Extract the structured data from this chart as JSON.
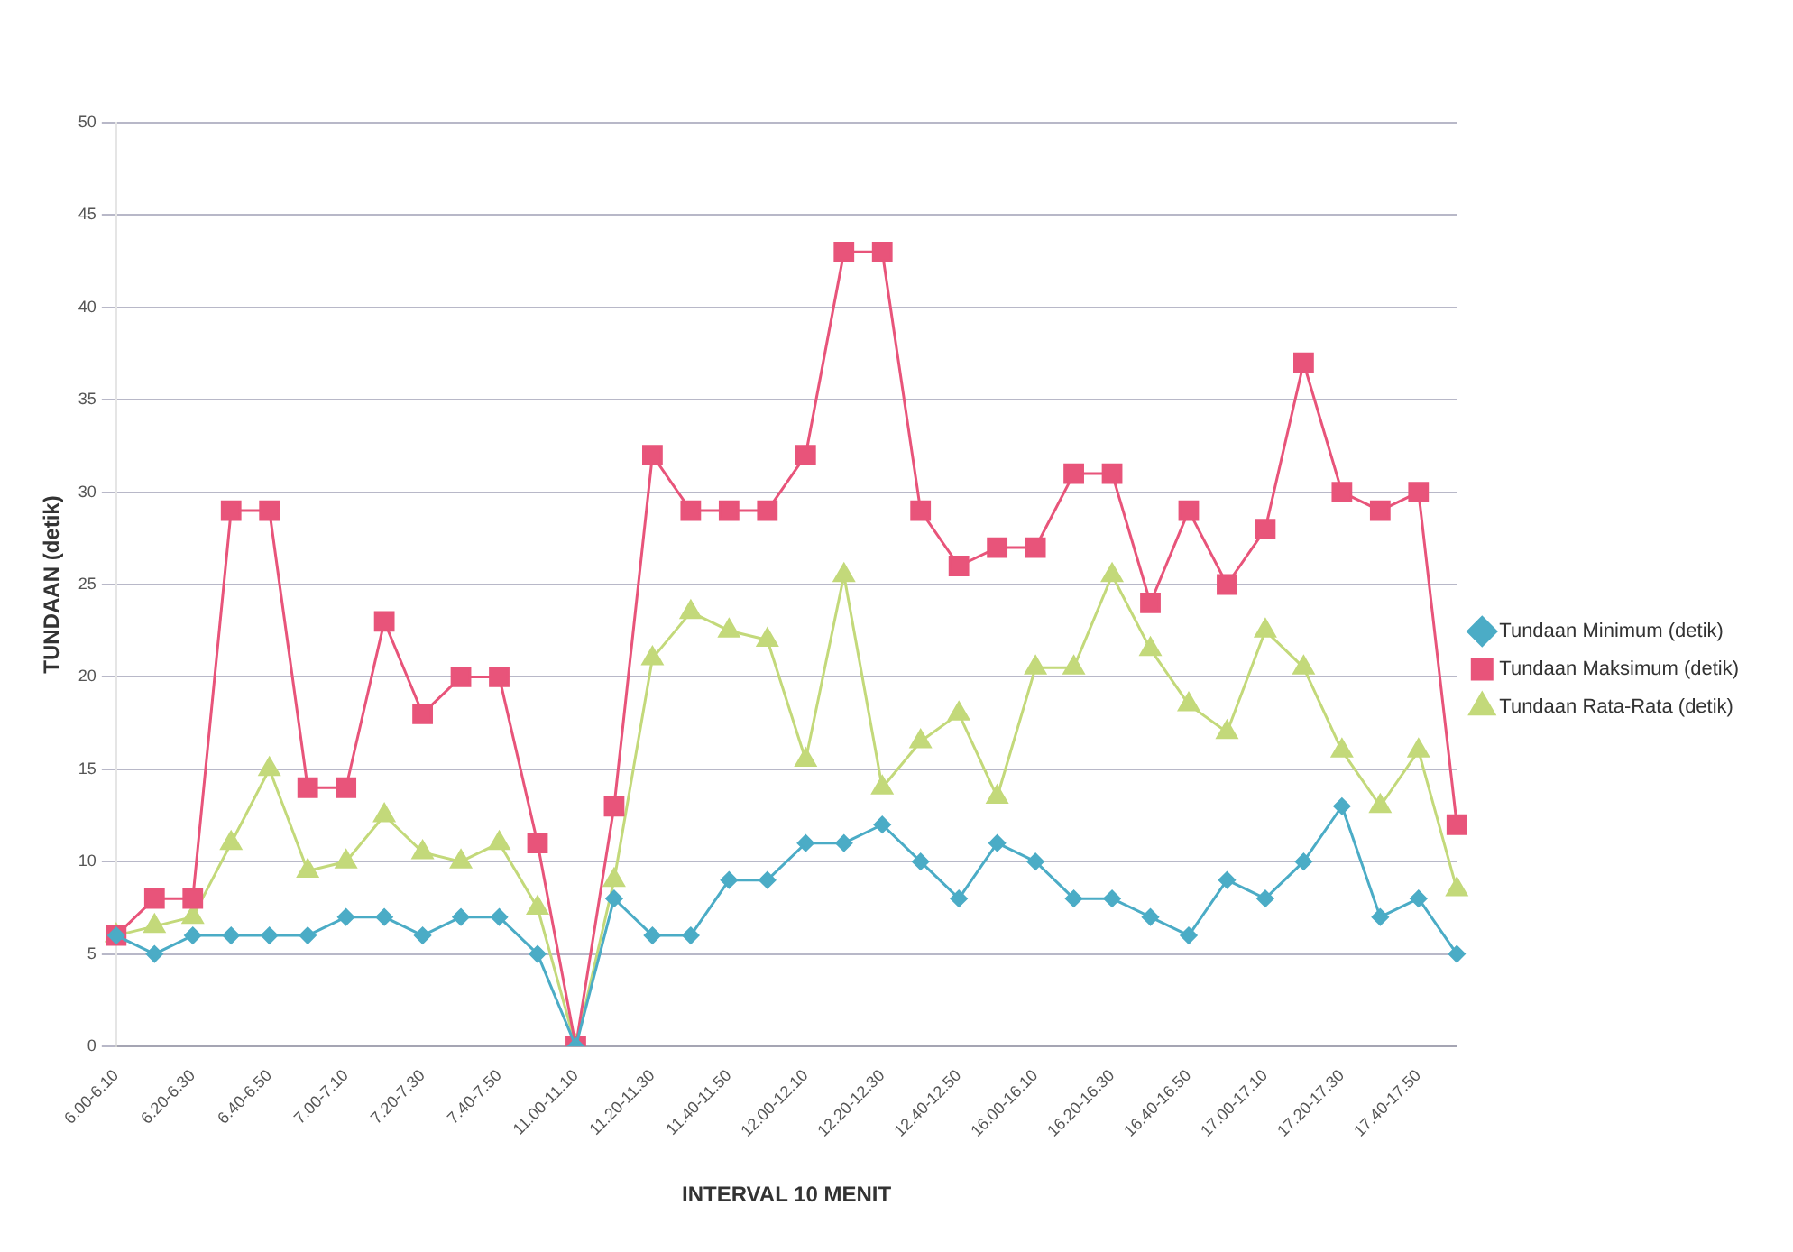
{
  "chart_data": {
    "type": "line",
    "xlabel": "INTERVAL 10 MENIT",
    "ylabel": "TUNDAAN (detik)",
    "categories": [
      "6.00-6.10",
      null,
      "6.20-6.30",
      null,
      "6.40-6.50",
      null,
      "7.00-7.10",
      null,
      "7.20-7.30",
      null,
      "7.40-7.50",
      null,
      "11.00-11.10",
      null,
      "11.20-11.30",
      null,
      "11.40-11.50",
      null,
      "12.00-12.10",
      null,
      "12.20-12.30",
      null,
      "12.40-12.50",
      null,
      "16.00-16.10",
      null,
      "16.20-16.30",
      null,
      "16.40-16.50",
      null,
      "17.00-17.10",
      null,
      "17.20-17.30",
      null,
      "17.40-17.50",
      null
    ],
    "series": [
      {
        "name": "Tundaan Minimum (detik)",
        "color": "#4bacc6",
        "marker": "diamond",
        "values": [
          6,
          5,
          6,
          6,
          6,
          6,
          7,
          7,
          6,
          7,
          7,
          5,
          0,
          8,
          6,
          6,
          9,
          9,
          11,
          11,
          12,
          10,
          8,
          11,
          10,
          8,
          8,
          7,
          6,
          9,
          8,
          10,
          13,
          7,
          8,
          5
        ]
      },
      {
        "name": "Tundaan Maksimum (detik)",
        "color": "#e8547a",
        "marker": "square",
        "values": [
          6,
          8,
          8,
          29,
          29,
          14,
          14,
          23,
          18,
          20,
          20,
          11,
          0,
          13,
          32,
          29,
          29,
          29,
          32,
          43,
          43,
          29,
          26,
          27,
          27,
          31,
          31,
          24,
          29,
          25,
          28,
          37,
          30,
          29,
          30,
          12
        ]
      },
      {
        "name": "Tundaan Rata-Rata (detik)",
        "color": "#c3d97a",
        "marker": "triangle",
        "values": [
          6,
          6.5,
          7,
          11,
          15,
          9.5,
          10,
          12.5,
          10.5,
          10,
          11,
          7.5,
          0,
          9,
          21,
          23.5,
          22.5,
          22,
          15.5,
          25.5,
          14,
          16.5,
          18,
          13.5,
          20.5,
          20.5,
          25.5,
          21.5,
          18.5,
          17,
          22.5,
          20.5,
          16,
          13,
          16,
          8.5
        ]
      }
    ],
    "ylim": [
      0,
      50
    ],
    "yticks": [
      0,
      5,
      10,
      15,
      20,
      25,
      30,
      35,
      40,
      45,
      50
    ],
    "grid": "y",
    "legend": "right"
  }
}
